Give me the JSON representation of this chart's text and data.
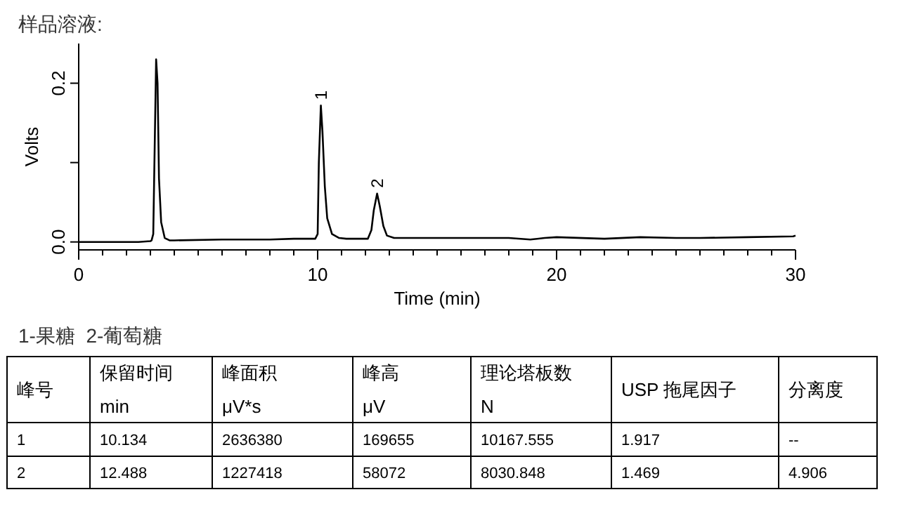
{
  "chart_data": {
    "type": "line",
    "title": "样品溶液:",
    "xlabel": "Time (min)",
    "ylabel": "Volts",
    "xlim": [
      0,
      30
    ],
    "ylim": [
      -0.01,
      0.25
    ],
    "xticks": [
      0,
      {
        "value": 1,
        "label": null
      },
      {
        "value": 2,
        "label": null
      },
      {
        "value": 3,
        "label": null
      },
      {
        "value": 4,
        "label": null
      },
      {
        "value": 5,
        "label": null
      },
      {
        "value": 6,
        "label": null
      },
      {
        "value": 7,
        "label": null
      },
      {
        "value": 8,
        "label": null
      },
      {
        "value": 9,
        "label": null
      },
      10,
      {
        "value": 11,
        "label": null
      },
      {
        "value": 12,
        "label": null
      },
      {
        "value": 13,
        "label": null
      },
      {
        "value": 14,
        "label": null
      },
      {
        "value": 15,
        "label": null
      },
      {
        "value": 16,
        "label": null
      },
      {
        "value": 17,
        "label": null
      },
      {
        "value": 18,
        "label": null
      },
      {
        "value": 19,
        "label": null
      },
      20,
      {
        "value": 21,
        "label": null
      },
      {
        "value": 22,
        "label": null
      },
      {
        "value": 23,
        "label": null
      },
      {
        "value": 24,
        "label": null
      },
      {
        "value": 25,
        "label": null
      },
      {
        "value": 26,
        "label": null
      },
      {
        "value": 27,
        "label": null
      },
      {
        "value": 28,
        "label": null
      },
      {
        "value": 29,
        "label": null
      },
      30
    ],
    "yticks": [
      {
        "value": 0,
        "label": "0.0"
      },
      {
        "value": 0.1,
        "label": null
      },
      0.2
    ],
    "series": [
      {
        "color": "#000000",
        "x": [
          0,
          1.5,
          2.5,
          3.0,
          3.05,
          3.12,
          3.18,
          3.24,
          3.3,
          3.36,
          3.45,
          3.6,
          3.8,
          4,
          6,
          7,
          8,
          9,
          9.8,
          9.9,
          10.0,
          10.05,
          10.134,
          10.2,
          10.3,
          10.4,
          10.6,
          10.9,
          11.2,
          12.1,
          12.25,
          12.35,
          12.488,
          12.6,
          12.75,
          12.9,
          13.2,
          14,
          16,
          18,
          18.9,
          19.5,
          20,
          22,
          23.5,
          25,
          26,
          28,
          29.9,
          30
        ],
        "values": [
          0,
          0,
          0,
          0.001,
          0.002,
          0.01,
          0.12,
          0.23,
          0.2,
          0.08,
          0.025,
          0.005,
          0.002,
          0.002,
          0.003,
          0.003,
          0.003,
          0.004,
          0.004,
          0.004,
          0.01,
          0.1,
          0.172,
          0.14,
          0.07,
          0.03,
          0.01,
          0.005,
          0.004,
          0.004,
          0.015,
          0.04,
          0.061,
          0.045,
          0.02,
          0.008,
          0.005,
          0.005,
          0.005,
          0.005,
          0.003,
          0.005,
          0.006,
          0.004,
          0.006,
          0.005,
          0.005,
          0.006,
          0.007,
          0.008
        ]
      }
    ],
    "annotations": [
      {
        "text": "1",
        "x": 10.134,
        "y": 0.172
      },
      {
        "text": "2",
        "x": 12.488,
        "y": 0.061
      },
      "1-果糖  2-葡萄糖",
      "峰号",
      "保留时间\nmin",
      "峰面积\nμV*s",
      "峰高\nμV",
      "理论塔板数\nN",
      "USP 拖尾因子",
      "分离度",
      "1",
      "10.134",
      "2636380",
      "169655",
      "10167.555",
      "1.917",
      "--",
      "2",
      "12.488",
      "1227418",
      "58072",
      "8030.848",
      "1.469",
      "4.906"
    ],
    "marker": "none",
    "line_style": "solid"
  }
}
